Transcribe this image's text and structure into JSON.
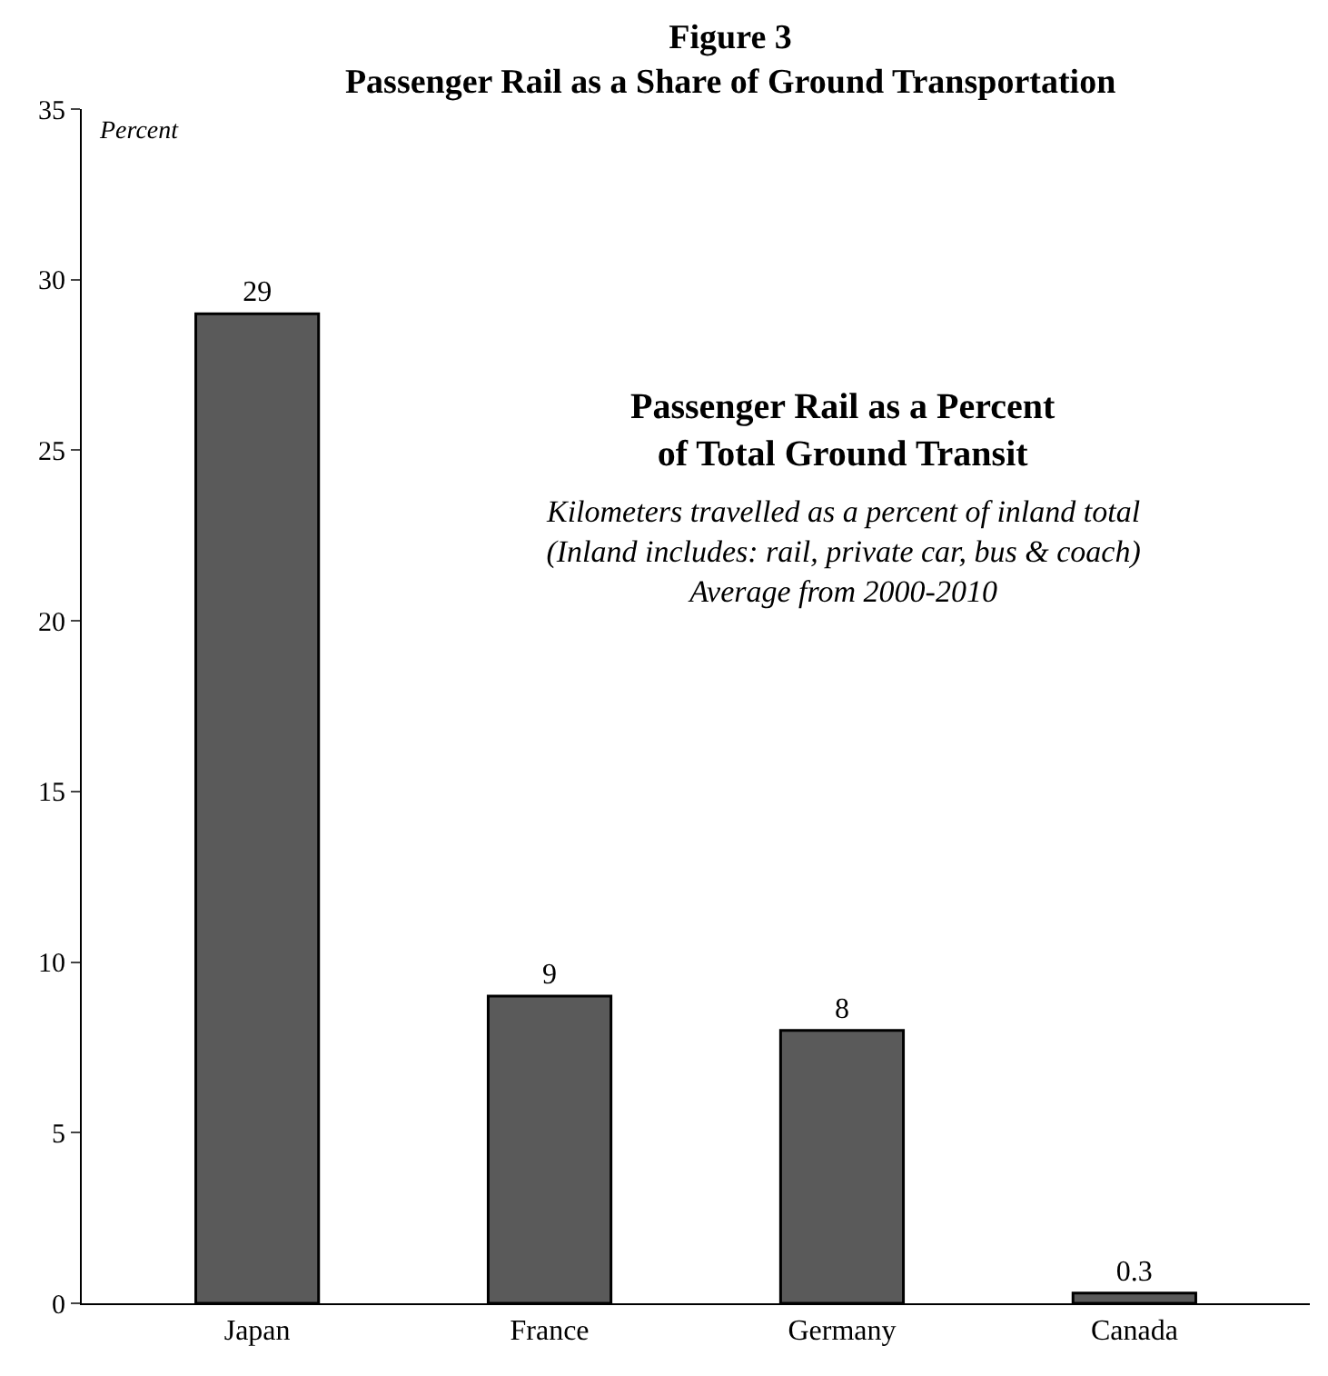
{
  "chart_data": {
    "type": "bar",
    "title": "Figure 3\nPassenger Rail as a Share of Ground Transportation",
    "ylabel": "Percent",
    "categories": [
      "Japan",
      "France",
      "Germany",
      "Canada"
    ],
    "values": [
      29,
      9,
      8,
      0.3
    ],
    "color": "#5a5a5a",
    "ylim": [
      0,
      35
    ],
    "yticks": [
      0,
      5,
      10,
      15,
      20,
      25,
      30,
      35
    ],
    "data_labels": true,
    "annotations": [
      "Passenger Rail as a Percent\nof Total Ground Transit",
      "Kilometers travelled as a percent of inland total\n(Inland includes: rail, private car, bus & coach)\nAverage from 2000-2010"
    ]
  }
}
